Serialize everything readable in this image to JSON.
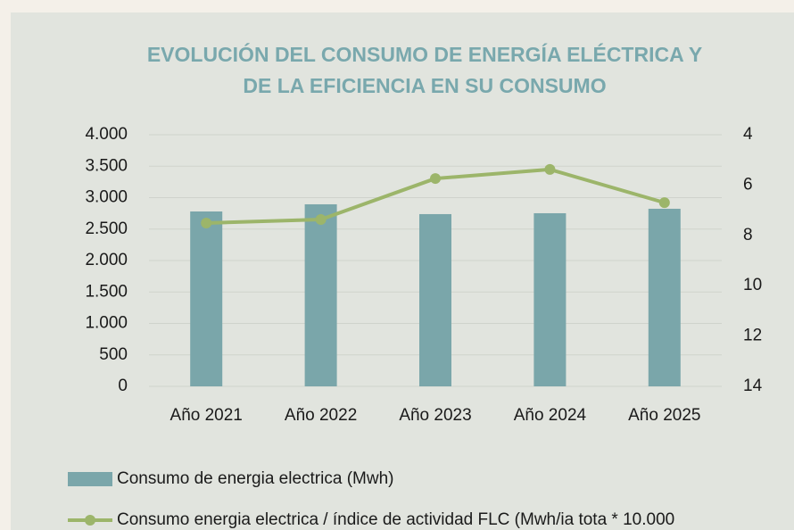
{
  "chart_data": {
    "type": "bar_line",
    "title_lines": [
      "EVOLUCIÓN DEL CONSUMO DE ENERGÍA ELÉCTRICA Y",
      "DE LA EFICIENCIA EN SU CONSUMO"
    ],
    "categories": [
      "Año 2021",
      "Año 2022",
      "Año 2023",
      "Año 2024",
      "Año 2025"
    ],
    "series": [
      {
        "name": "Consumo de energia electrica (Mwh)",
        "type": "bar",
        "color": "#7aa6aa",
        "values": [
          2780,
          2894,
          2738,
          2752,
          2823
        ]
      },
      {
        "name": "Consumo energia electrica / índice de actividad FLC (Mwh/ia tota * 10.000",
        "type": "line",
        "axis": "y2",
        "color": "#9cb56a",
        "values": [
          7.51,
          7.37,
          5.74,
          5.38,
          6.7
        ]
      }
    ],
    "ylim": [
      0,
      4000
    ],
    "yticks": [
      0,
      500,
      {
        "value": 1000,
        "label": "1.000"
      },
      {
        "value": 1500,
        "label": "1.500"
      },
      {
        "value": 2000,
        "label": "2.000"
      },
      {
        "value": 2500,
        "label": "2.500"
      },
      {
        "value": 3000,
        "label": "3.000"
      },
      {
        "value": 3500,
        "label": "3.500"
      },
      {
        "value": 4000,
        "label": "4.000"
      }
    ],
    "y2lim": [
      4,
      14
    ],
    "y2_reversed": true,
    "y2ticks": [
      4,
      6,
      8,
      10,
      12,
      14
    ],
    "grid": true,
    "legend": "bottom"
  }
}
